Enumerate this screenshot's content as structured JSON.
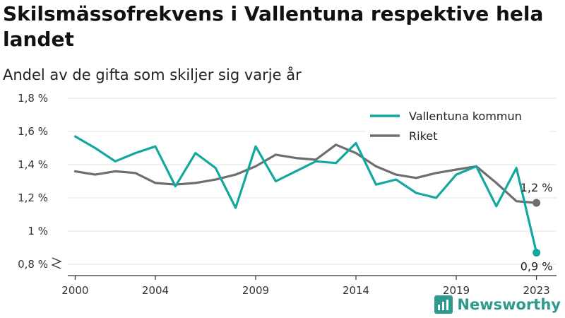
{
  "colors": {
    "series_1": "#13a89e",
    "series_2": "#6d6d72",
    "grid": "#e3e3e3",
    "axis": "#333333",
    "brand": "#2e9a8e"
  },
  "branding": {
    "name": "Newsworthy",
    "icon": "bar-chart-logo-icon"
  },
  "chart_data": {
    "type": "line",
    "title": "Skilsmässofrekvens i Vallentuna respektive hela landet",
    "subtitle": "Andel av de gifta som skiljer sig varje år",
    "xlabel": "",
    "ylabel": "",
    "x": [
      2000,
      2001,
      2002,
      2003,
      2004,
      2005,
      2006,
      2007,
      2008,
      2009,
      2010,
      2011,
      2012,
      2013,
      2014,
      2015,
      2016,
      2017,
      2018,
      2019,
      2020,
      2021,
      2022,
      2023
    ],
    "xticks": [
      2000,
      2004,
      2009,
      2014,
      2019,
      2023
    ],
    "xtick_labels": [
      "2000",
      "2004",
      "2009",
      "2014",
      "2019",
      "2023"
    ],
    "xlim": [
      1999,
      2024
    ],
    "ylim": [
      0.8,
      1.8
    ],
    "yticks": [
      0.8,
      1.0,
      1.2,
      1.4,
      1.6,
      1.8
    ],
    "ytick_labels": [
      "0,8 %",
      "1 %",
      "1,2 %",
      "1,4 %",
      "1,6 %",
      "1,8 %"
    ],
    "axis_break": true,
    "grid": true,
    "legend_position": "top-right",
    "series": [
      {
        "name": "Vallentuna kommun",
        "color": "#13a89e",
        "values": [
          1.57,
          1.5,
          1.42,
          1.47,
          1.51,
          1.27,
          1.47,
          1.38,
          1.14,
          1.51,
          1.3,
          1.36,
          1.42,
          1.41,
          1.53,
          1.28,
          1.31,
          1.23,
          1.2,
          1.34,
          1.39,
          1.15,
          1.38,
          0.87
        ],
        "end_label": "0,9 %"
      },
      {
        "name": "Riket",
        "color": "#6d6d72",
        "values": [
          1.36,
          1.34,
          1.36,
          1.35,
          1.29,
          1.28,
          1.29,
          1.31,
          1.34,
          1.39,
          1.46,
          1.44,
          1.43,
          1.52,
          1.47,
          1.39,
          1.34,
          1.32,
          1.35,
          1.37,
          1.39,
          1.29,
          1.18,
          1.17
        ],
        "end_label": "1,2 %"
      }
    ]
  }
}
